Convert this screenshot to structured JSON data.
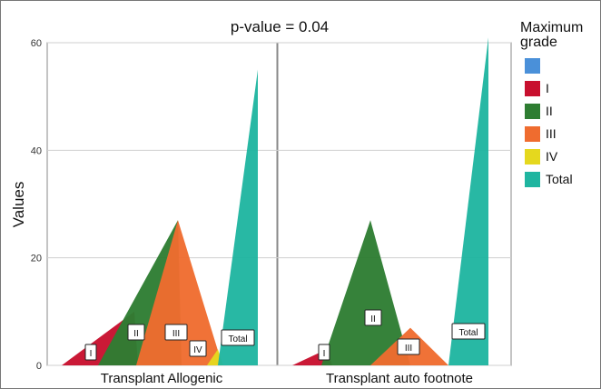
{
  "chart_data": {
    "type": "area",
    "title": "p-value = 0.04",
    "ylabel": "Values",
    "ylim": [
      0,
      60
    ],
    "yticks": [
      0,
      20,
      40,
      60
    ],
    "grid": true,
    "legend_position": "right",
    "legend": {
      "title_line1": "Maximum",
      "title_line2": "grade",
      "entries": [
        {
          "label": "",
          "color": "#4a90d9"
        },
        {
          "label": "I",
          "color": "#c8102e"
        },
        {
          "label": "II",
          "color": "#2e7d32"
        },
        {
          "label": "III",
          "color": "#ef6c2f"
        },
        {
          "label": "IV",
          "color": "#e5d81e"
        },
        {
          "label": "Total",
          "color": "#1fb5a0"
        }
      ]
    },
    "panels": [
      {
        "name": "Transplant Allogenic",
        "series": [
          {
            "name": "I",
            "peak": 10,
            "label": "I"
          },
          {
            "name": "II",
            "peak": 27,
            "label": "II"
          },
          {
            "name": "III",
            "peak": 27,
            "label": "III"
          },
          {
            "name": "IV",
            "peak": 3,
            "label": "IV"
          },
          {
            "name": "Total",
            "peak": 55,
            "label": "Total"
          }
        ]
      },
      {
        "name": "Transplant auto footnote",
        "series": [
          {
            "name": "I",
            "peak": 3,
            "label": "I"
          },
          {
            "name": "II",
            "peak": 27,
            "label": "II"
          },
          {
            "name": "III",
            "peak": 7,
            "label": "III"
          },
          {
            "name": "Total",
            "peak": 61,
            "label": "Total"
          }
        ]
      }
    ]
  }
}
